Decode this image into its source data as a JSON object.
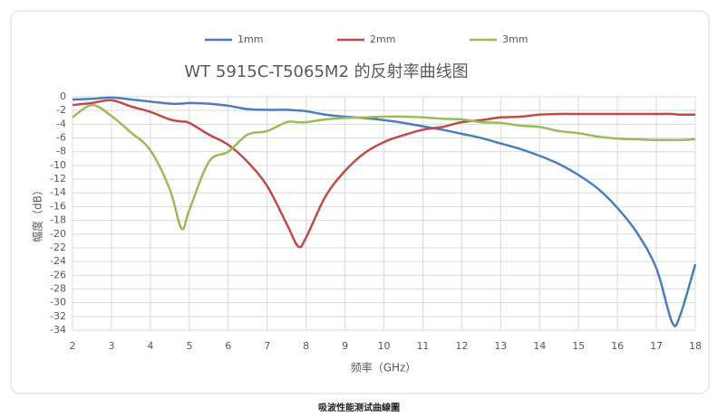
{
  "chart_data": {
    "type": "line",
    "title": "WT 5915C-T5065M2 的反射率曲线图",
    "x_label": "频率（GHz）",
    "y_label": "幅度（dB）",
    "caption": "吸波性能测试曲線圖",
    "x": [
      2,
      2.5,
      3,
      3.5,
      4,
      4.5,
      4.8,
      5,
      5.5,
      6,
      6.5,
      7,
      7.5,
      7.8,
      8,
      8.5,
      9,
      9.5,
      10,
      10.5,
      11,
      11.5,
      12,
      12.5,
      13,
      13.5,
      14,
      14.5,
      15,
      15.5,
      16,
      16.5,
      17,
      17.4,
      17.6,
      18
    ],
    "series": [
      {
        "name": "1mm",
        "color": "#4a7ebb",
        "values": [
          -0.4,
          -0.3,
          -0.1,
          -0.4,
          -0.7,
          -1.0,
          -1.0,
          -0.9,
          -1.0,
          -1.3,
          -1.8,
          -1.9,
          -1.9,
          -2.0,
          -2.1,
          -2.6,
          -2.9,
          -3.1,
          -3.4,
          -3.8,
          -4.3,
          -4.8,
          -5.4,
          -6.0,
          -6.8,
          -7.6,
          -8.6,
          -9.8,
          -11.4,
          -13.4,
          -16.2,
          -19.8,
          -25,
          -32.8,
          -32,
          -24.4
        ]
      },
      {
        "name": "2mm",
        "color": "#be4b48",
        "values": [
          -1.2,
          -0.9,
          -0.5,
          -1.4,
          -2.2,
          -3.3,
          -3.6,
          -3.8,
          -5.5,
          -7.0,
          -9.5,
          -13.0,
          -18.5,
          -21.8,
          -20.5,
          -14.5,
          -10.8,
          -8.2,
          -6.6,
          -5.6,
          -4.8,
          -4.4,
          -3.7,
          -3.4,
          -3.0,
          -2.9,
          -2.6,
          -2.5,
          -2.5,
          -2.5,
          -2.5,
          -2.5,
          -2.5,
          -2.5,
          -2.6,
          -2.6
        ]
      },
      {
        "name": "3mm",
        "color": "#9bbb59",
        "values": [
          -3.0,
          -1.2,
          -2.8,
          -5.2,
          -7.8,
          -13.5,
          -19.2,
          -16.5,
          -9.5,
          -8.0,
          -5.5,
          -5.0,
          -3.7,
          -3.7,
          -3.7,
          -3.3,
          -3.1,
          -3.0,
          -2.9,
          -2.9,
          -3.0,
          -3.2,
          -3.3,
          -3.7,
          -3.8,
          -4.2,
          -4.4,
          -5.0,
          -5.3,
          -5.8,
          -6.1,
          -6.2,
          -6.3,
          -6.3,
          -6.3,
          -6.2
        ]
      }
    ],
    "xlim": [
      2,
      18
    ],
    "xticks": [
      2,
      3,
      4,
      5,
      6,
      7,
      8,
      9,
      10,
      11,
      12,
      13,
      14,
      15,
      16,
      17,
      18
    ],
    "ylim": [
      -34,
      0
    ],
    "yticks": [
      0,
      -2,
      -4,
      -6,
      -8,
      -10,
      -12,
      -14,
      -16,
      -18,
      -20,
      -22,
      -24,
      -26,
      -28,
      -30,
      -32,
      -34
    ],
    "grid": true,
    "legend": "top"
  }
}
